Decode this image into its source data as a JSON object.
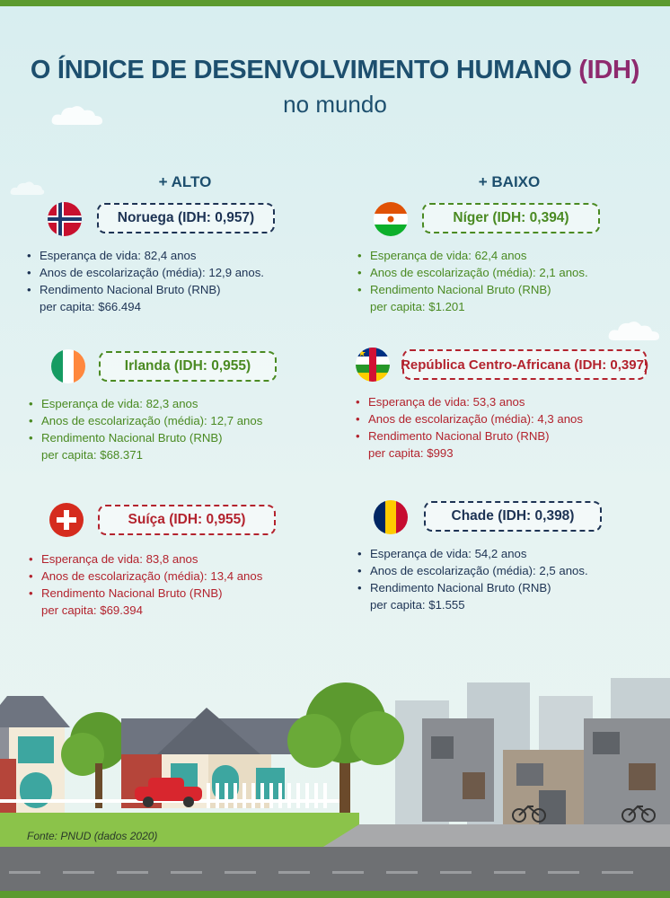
{
  "title": {
    "prefix": "O ÍNDICE DE DESENVOLVIMENTO HUMANO ",
    "highlight": "(IDH)",
    "subtitle": "no mundo"
  },
  "columns": {
    "high": "+ ALTO",
    "low": "+ BAIXO"
  },
  "countries": {
    "noruega": {
      "label": "Noruega (IDH: 0,957)",
      "life": "Esperança de vida: 82,4 anos",
      "school": "Anos de escolarização (média): 12,9 anos.",
      "gni_line1": "Rendimento Nacional Bruto (RNB)",
      "gni_line2": "per capita: $66.494"
    },
    "irlanda": {
      "label": "Irlanda (IDH: 0,955)",
      "life": "Esperança de vida: 82,3 anos",
      "school": "Anos de escolarização (média): 12,7 anos",
      "gni_line1": "Rendimento Nacional Bruto (RNB)",
      "gni_line2": "per capita: $68.371"
    },
    "suica": {
      "label": "Suíça (IDH: 0,955)",
      "life": "Esperança de vida: 83,8 anos",
      "school": "Anos de escolarização (média): 13,4 anos",
      "gni_line1": "Rendimento Nacional Bruto (RNB)",
      "gni_line2": "per capita: $69.394"
    },
    "niger": {
      "label": "Níger (IDH: 0,394)",
      "life": "Esperança de vida: 62,4 anos",
      "school": "Anos de escolarização (média): 2,1 anos.",
      "gni_line1": "Rendimento Nacional Bruto (RNB)",
      "gni_line2": "per capita: $1.201"
    },
    "rca": {
      "label": "República Centro-Africana (IDH: 0,397)",
      "life": "Esperança de vida: 53,3 anos",
      "school": "Anos de escolarização (média): 4,3 anos",
      "gni_line1": "Rendimento Nacional Bruto (RNB)",
      "gni_line2": "per capita: $993"
    },
    "chade": {
      "label": "Chade (IDH: 0,398)",
      "life": "Esperança de vida: 54,2 anos",
      "school": "Anos de escolarização (média): 2,5 anos.",
      "gni_line1": "Rendimento Nacional Bruto (RNB)",
      "gni_line2": "per capita: $1.555"
    }
  },
  "source": "Fonte: PNUD (dados 2020)",
  "colors": {
    "navy": "#1d3354",
    "green": "#4a8a22",
    "red": "#b3232e",
    "title": "#1d4f6e",
    "title_highlight": "#8e2a6e",
    "frame": "#5c9a2f"
  },
  "icons": [
    "norway-flag-icon",
    "ireland-flag-icon",
    "switzerland-flag-icon",
    "niger-flag-icon",
    "central-african-republic-flag-icon",
    "chad-flag-icon"
  ]
}
